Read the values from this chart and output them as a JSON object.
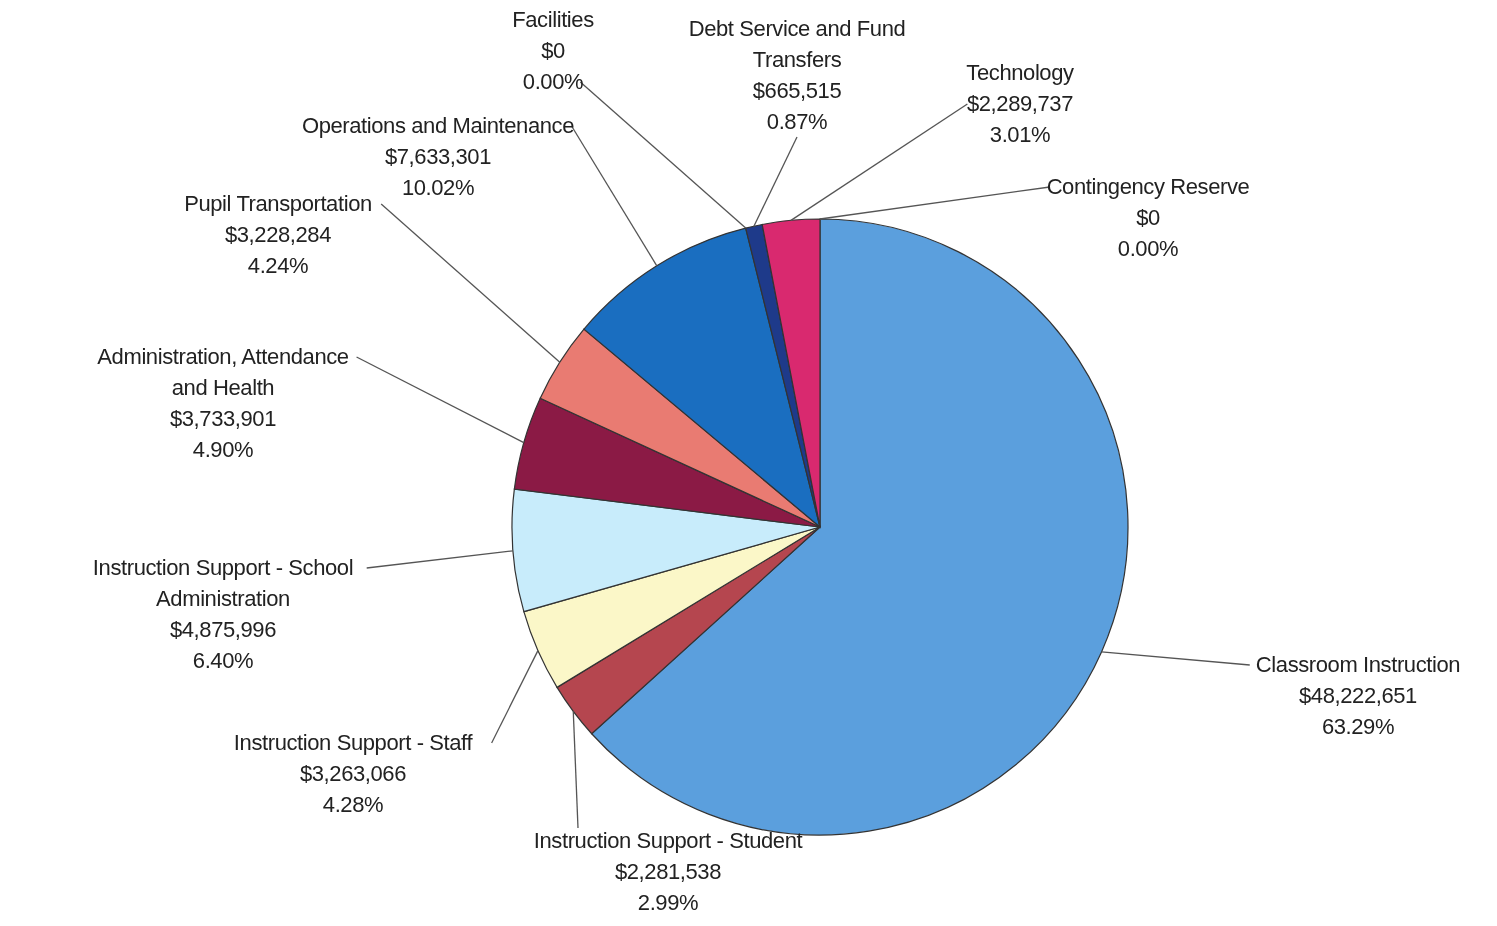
{
  "chart_data": {
    "type": "pie",
    "categories": [
      "Classroom Instruction",
      "Instruction Support - Student",
      "Instruction Support - Staff",
      "Instruction Support - School Administration",
      "Administration, Attendance and Health",
      "Pupil Transportation",
      "Operations and Maintenance",
      "Facilities",
      "Debt Service and Fund Transfers",
      "Technology",
      "Contingency Reserve"
    ],
    "values": [
      48222651,
      2281538,
      3263066,
      4875996,
      3733901,
      3228284,
      7633301,
      0,
      665515,
      2289737,
      0
    ],
    "colors": [
      "#5b9fdd",
      "#b5464f",
      "#fbf7c8",
      "#c8ecfb",
      "#8b1a45",
      "#e97b72",
      "#1a6ec0",
      "#7f7f7f",
      "#1e3a8a",
      "#d9296f",
      "#a0a0a0"
    ],
    "value_labels": [
      "$48,222,651\n63.29%",
      "$2,281,538\n2.99%",
      "$3,263,066\n4.28%",
      "$4,875,996\n6.40%",
      "$3,733,901\n4.90%",
      "$3,228,284\n4.24%",
      "$7,633,301\n10.02%",
      "$0\n0.00%",
      "$665,515\n0.87%",
      "$2,289,737\n3.01%",
      "$0\n0.00%"
    ]
  }
}
